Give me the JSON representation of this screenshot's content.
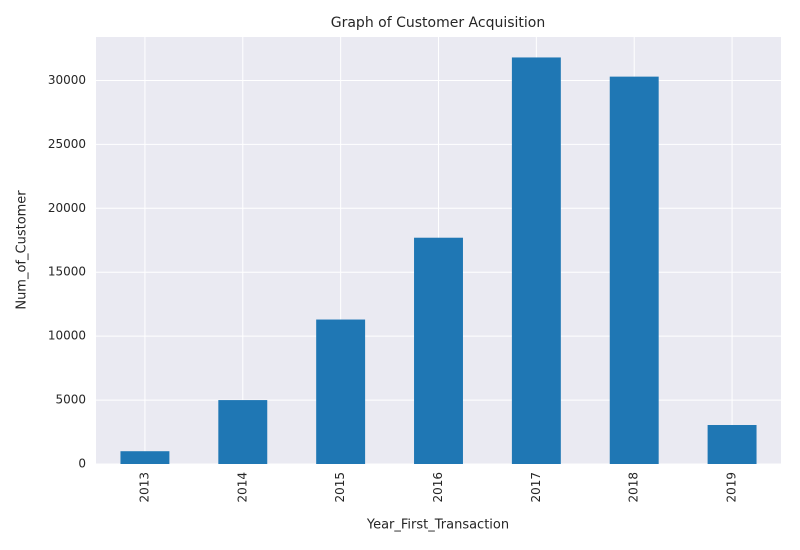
{
  "chart_data": {
    "type": "bar",
    "title": "Graph of Customer Acquisition",
    "x_label": "Year_First_Transaction",
    "y_label": "Num_of_Customer",
    "categories": [
      "2013",
      "2014",
      "2015",
      "2016",
      "2017",
      "2018",
      "2019"
    ],
    "values": [
      1000,
      5000,
      11300,
      17700,
      31800,
      30300,
      3050
    ],
    "color": "#1f77b4",
    "ylim": [
      0,
      33400
    ],
    "yticks": [
      0,
      5000,
      10000,
      15000,
      20000,
      25000,
      30000
    ],
    "grid": true
  }
}
